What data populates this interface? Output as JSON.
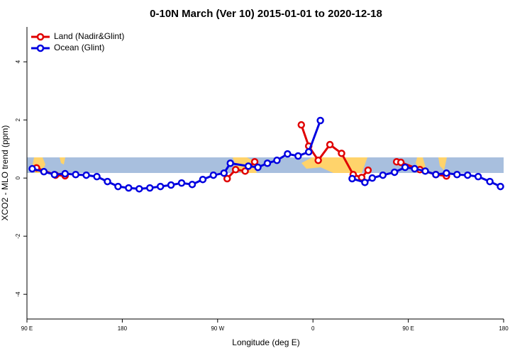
{
  "chart_data": {
    "type": "line",
    "title": "0-10N March (Ver 10)   2015-01-01 to 2020-12-18",
    "xlabel": "Longitude (deg E)",
    "ylabel": "XCO2 - MLO trend (ppm)",
    "xlim": [
      90,
      540
    ],
    "ylim": [
      -4.85,
      5.2
    ],
    "xticks": [
      {
        "value": 90,
        "label": "90 E"
      },
      180,
      {
        "value": 270,
        "label": "90 W"
      },
      {
        "value": 360,
        "label": "0"
      },
      {
        "value": 450,
        "label": "90 E"
      },
      {
        "value": 540,
        "label": "180"
      }
    ],
    "yticks": [
      -4,
      -2,
      0,
      2,
      4
    ],
    "legend": "top-left",
    "series": [
      {
        "name": "Land (Nadir&Glint)",
        "color": "#e00000",
        "x": [
          99,
          117,
          126,
          null,
          279,
          287,
          296,
          305,
          null,
          349,
          356,
          365,
          376,
          387,
          398,
          406,
          412,
          null,
          439,
          443,
          461,
          476,
          486
        ],
        "values": [
          0.35,
          0.1,
          0.08,
          null,
          -0.02,
          0.29,
          0.24,
          0.56,
          null,
          1.83,
          1.1,
          0.61,
          1.15,
          0.85,
          0.12,
          0.02,
          0.27,
          null,
          0.56,
          0.54,
          0.29,
          0.12,
          0.07
        ]
      },
      {
        "name": "Ocean (Glint)",
        "color": "#0000e0",
        "x": [
          95,
          106,
          116,
          126,
          136,
          146,
          156,
          166,
          176,
          186,
          196,
          206,
          216,
          226,
          236,
          246,
          256,
          266,
          276,
          282,
          299,
          308,
          317,
          326,
          336,
          346,
          356,
          367,
          null,
          397,
          409,
          416,
          426,
          437,
          447,
          456,
          466,
          476,
          486,
          496,
          506,
          516,
          527,
          537
        ],
        "values": [
          0.32,
          0.22,
          0.12,
          0.15,
          0.12,
          0.1,
          0.05,
          -0.12,
          -0.29,
          -0.34,
          -0.37,
          -0.34,
          -0.29,
          -0.24,
          -0.17,
          -0.22,
          -0.05,
          0.1,
          0.17,
          0.51,
          0.41,
          0.37,
          0.51,
          0.61,
          0.83,
          0.76,
          0.9,
          1.98,
          null,
          -0.02,
          -0.15,
          0,
          0.1,
          0.2,
          0.37,
          0.32,
          0.24,
          0.12,
          0.17,
          0.12,
          0.1,
          0.05,
          -0.12,
          -0.29
        ]
      }
    ]
  }
}
